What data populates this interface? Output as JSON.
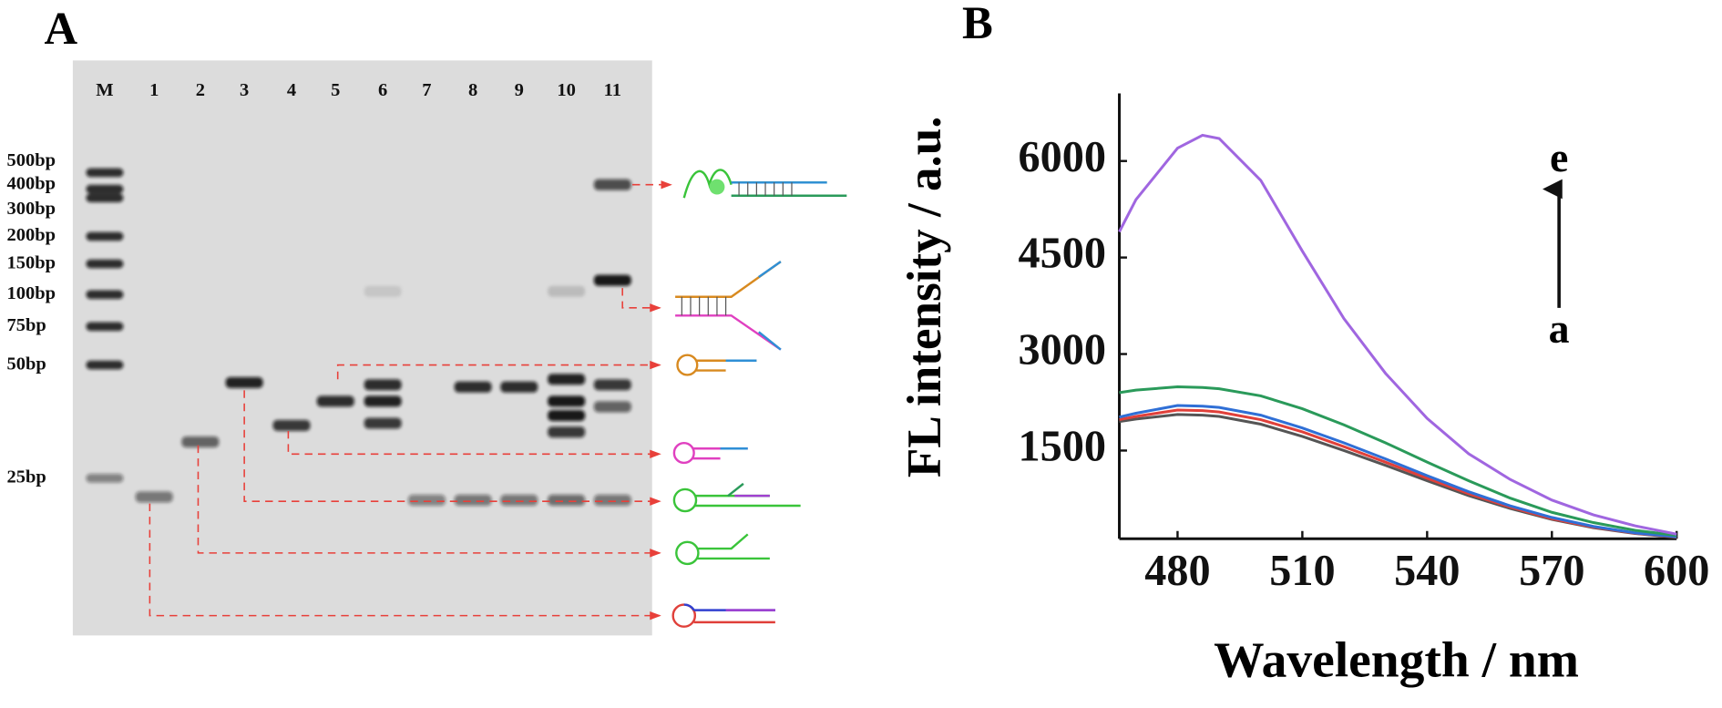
{
  "gel": {
    "panel_label": "A",
    "lanes": [
      "M",
      "1",
      "2",
      "3",
      "4",
      "5",
      "6",
      "7",
      "8",
      "9",
      "10",
      "11"
    ],
    "markers": [
      "500bp",
      "400bp",
      "300bp",
      "200bp",
      "150bp",
      "100bp",
      "75bp",
      "50bp",
      "25bp"
    ]
  },
  "chart_data": {
    "type": "line",
    "panel_label": "B",
    "xlabel": "Wavelength / nm",
    "ylabel": "FL intensity / a.u.",
    "annotations": [
      "e",
      "a"
    ],
    "x": [
      466,
      470,
      480,
      486,
      490,
      500,
      510,
      520,
      530,
      540,
      550,
      560,
      570,
      580,
      590,
      600
    ],
    "series": [
      {
        "color": "#555555",
        "values": [
          1950,
          1990,
          2060,
          2050,
          2030,
          1910,
          1720,
          1500,
          1270,
          1030,
          800,
          600,
          430,
          300,
          210,
          150
        ]
      },
      {
        "color": "#e0403a",
        "values": [
          1980,
          2030,
          2130,
          2120,
          2100,
          1980,
          1790,
          1560,
          1320,
          1070,
          830,
          620,
          440,
          310,
          215,
          155
        ]
      },
      {
        "color": "#2f6fd6",
        "values": [
          2020,
          2080,
          2200,
          2190,
          2170,
          2050,
          1850,
          1620,
          1370,
          1110,
          860,
          640,
          460,
          320,
          220,
          160
        ]
      },
      {
        "color": "#2a9a5a",
        "values": [
          2400,
          2440,
          2490,
          2480,
          2460,
          2350,
          2150,
          1900,
          1620,
          1320,
          1030,
          760,
          540,
          380,
          260,
          180
        ]
      },
      {
        "color": "#a066e0",
        "values": [
          4900,
          5400,
          6200,
          6400,
          6350,
          5700,
          4600,
          3550,
          2700,
          2000,
          1450,
          1050,
          730,
          500,
          330,
          200
        ]
      }
    ],
    "xlim": [
      466,
      600
    ],
    "ylim": [
      130,
      7050
    ],
    "xticks": [
      480,
      510,
      540,
      570,
      600
    ],
    "yticks": [
      1500,
      3000,
      4500,
      6000
    ],
    "grid": false
  }
}
